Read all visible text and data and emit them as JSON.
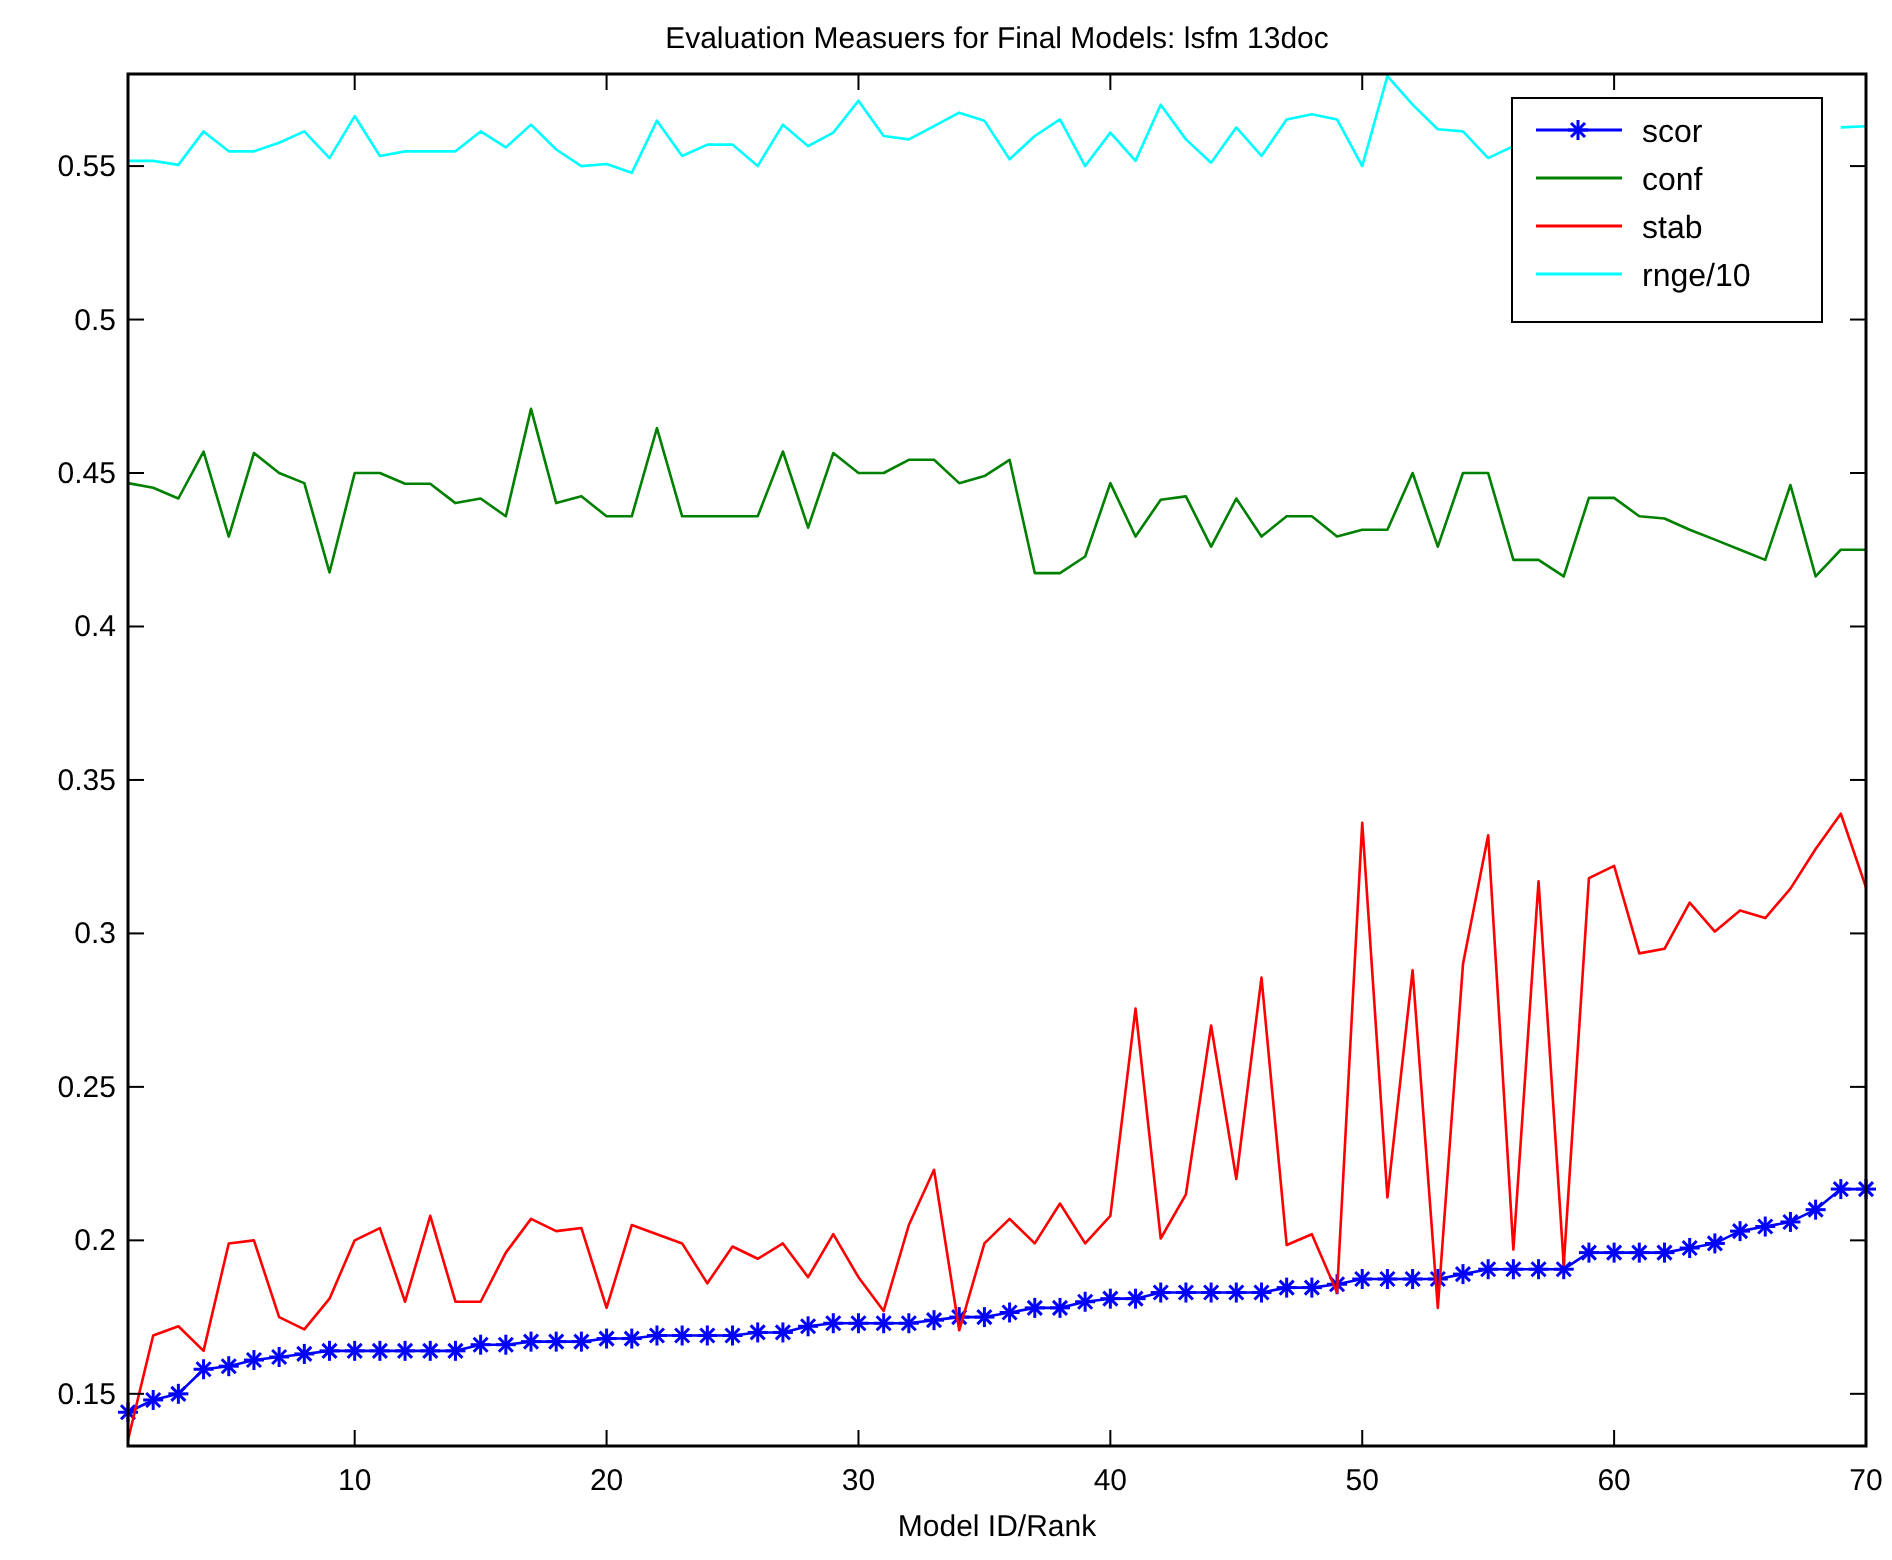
{
  "chart_data": {
    "type": "line",
    "title": "Evaluation Measuers for Final Models: lsfm 13doc",
    "xlabel": "Model ID/Rank",
    "x": [
      1,
      2,
      3,
      4,
      5,
      6,
      7,
      8,
      9,
      10,
      11,
      12,
      13,
      14,
      15,
      16,
      17,
      18,
      19,
      20,
      21,
      22,
      23,
      24,
      25,
      26,
      27,
      28,
      29,
      30,
      31,
      32,
      33,
      34,
      35,
      36,
      37,
      38,
      39,
      40,
      41,
      42,
      43,
      44,
      45,
      46,
      47,
      48,
      49,
      50,
      51,
      52,
      53,
      54,
      55,
      56,
      57,
      58,
      59,
      60,
      61,
      62,
      63,
      64,
      65,
      66,
      67,
      68,
      69,
      70
    ],
    "xlim": [
      1,
      70
    ],
    "xticks": [
      10,
      20,
      30,
      40,
      50,
      60,
      70
    ],
    "ylim": [
      0.133,
      0.58
    ],
    "yticks": [
      0.15,
      0.2,
      0.25,
      0.3,
      0.35,
      0.4,
      0.45,
      0.5,
      0.55
    ],
    "grid": false,
    "legend": "top right",
    "line_style": "solid",
    "series": [
      {
        "name": "scor",
        "color": "#0000ff",
        "marker": "cross",
        "values": [
          0.144,
          0.148,
          0.15,
          0.158,
          0.159,
          0.161,
          0.162,
          0.163,
          0.164,
          0.164,
          0.164,
          0.164,
          0.164,
          0.164,
          0.166,
          0.166,
          0.167,
          0.167,
          0.167,
          0.168,
          0.168,
          0.169,
          0.169,
          0.169,
          0.169,
          0.17,
          0.17,
          0.172,
          0.173,
          0.173,
          0.173,
          0.173,
          0.174,
          0.175,
          0.175,
          0.1765,
          0.178,
          0.178,
          0.18,
          0.181,
          0.181,
          0.183,
          0.183,
          0.183,
          0.183,
          0.183,
          0.1846,
          0.1846,
          0.1857,
          0.1874,
          0.1874,
          0.1874,
          0.1874,
          0.189,
          0.1906,
          0.1906,
          0.1906,
          0.1906,
          0.196,
          0.196,
          0.196,
          0.196,
          0.1975,
          0.199,
          0.203,
          0.2045,
          0.206,
          0.21,
          0.2167,
          0.2167
        ]
      },
      {
        "name": "conf",
        "color": "#008000",
        "values": [
          0.4467,
          0.4452,
          0.4417,
          0.457,
          0.4293,
          0.4565,
          0.45,
          0.4467,
          0.4176,
          0.45,
          0.45,
          0.4465,
          0.4465,
          0.4402,
          0.4417,
          0.4359,
          0.4709,
          0.4402,
          0.4424,
          0.4359,
          0.4359,
          0.4646,
          0.4359,
          0.4359,
          0.4359,
          0.4359,
          0.457,
          0.4322,
          0.4565,
          0.45,
          0.45,
          0.4543,
          0.4543,
          0.4467,
          0.449,
          0.4543,
          0.4174,
          0.4174,
          0.4228,
          0.4467,
          0.4293,
          0.4413,
          0.4424,
          0.426,
          0.4417,
          0.4293,
          0.4359,
          0.4359,
          0.4293,
          0.4315,
          0.4315,
          0.45,
          0.426,
          0.45,
          0.45,
          0.4217,
          0.4217,
          0.4163,
          0.4419,
          0.4419,
          0.4359,
          0.4352,
          0.4315,
          0.4283,
          0.425,
          0.4217,
          0.4461,
          0.4163,
          0.425,
          0.425
        ]
      },
      {
        "name": "stab",
        "color": "#ff0000",
        "values": [
          0.135,
          0.169,
          0.172,
          0.164,
          0.199,
          0.2,
          0.175,
          0.171,
          0.181,
          0.2,
          0.204,
          0.18,
          0.208,
          0.18,
          0.18,
          0.196,
          0.207,
          0.203,
          0.204,
          0.178,
          0.205,
          0.202,
          0.199,
          0.186,
          0.198,
          0.194,
          0.199,
          0.188,
          0.202,
          0.188,
          0.177,
          0.205,
          0.223,
          0.1707,
          0.199,
          0.207,
          0.199,
          0.212,
          0.199,
          0.208,
          0.2755,
          0.2006,
          0.215,
          0.27,
          0.22,
          0.2856,
          0.1985,
          0.202,
          0.183,
          0.336,
          0.214,
          0.288,
          0.178,
          0.29,
          0.332,
          0.197,
          0.317,
          0.192,
          0.318,
          0.322,
          0.2935,
          0.295,
          0.31,
          0.3006,
          0.3075,
          0.305,
          0.3146,
          0.3275,
          0.339,
          0.315
        ]
      },
      {
        "name": "rnge/10",
        "color": "#00ffff",
        "values": [
          0.5517,
          0.5517,
          0.5504,
          0.5613,
          0.5548,
          0.5548,
          0.5576,
          0.5613,
          0.5526,
          0.5663,
          0.5533,
          0.5548,
          0.5548,
          0.5548,
          0.5613,
          0.5561,
          0.5635,
          0.5554,
          0.55,
          0.5507,
          0.5478,
          0.5648,
          0.5533,
          0.557,
          0.557,
          0.55,
          0.5635,
          0.5565,
          0.5609,
          0.5713,
          0.5598,
          0.5587,
          0.563,
          0.5674,
          0.5648,
          0.5522,
          0.5598,
          0.5652,
          0.55,
          0.5609,
          0.5517,
          0.57,
          0.5587,
          0.5511,
          0.5626,
          0.5533,
          0.5652,
          0.5669,
          0.5652,
          0.55,
          0.5793,
          0.57,
          0.562,
          0.5613,
          0.5526,
          0.5565,
          null,
          null,
          null,
          null,
          null,
          null,
          null,
          null,
          null,
          null,
          null,
          null,
          0.5626,
          0.563
        ]
      }
    ]
  }
}
